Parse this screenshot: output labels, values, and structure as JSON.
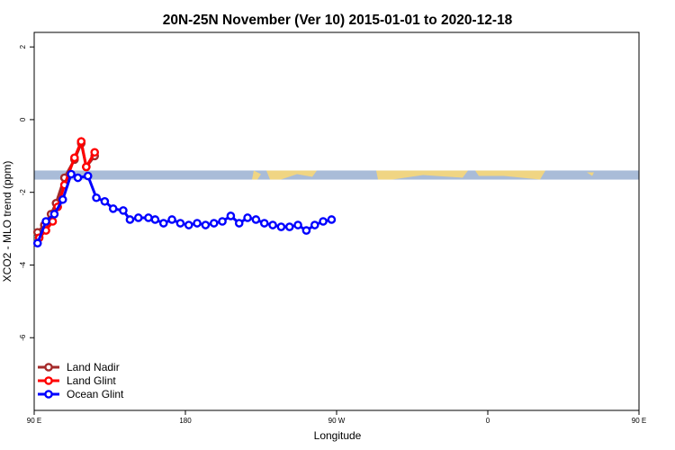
{
  "chart_data": {
    "type": "line",
    "title": "20N-25N November (Ver 10)   2015-01-01 to 2020-12-18",
    "xlabel": "Longitude",
    "ylabel": "XCO2 - MLO trend (ppm)",
    "xlim": [
      90,
      450
    ],
    "ylim": [
      -8,
      2.4
    ],
    "x_ticks": [
      {
        "value": 90,
        "label": "90 E"
      },
      {
        "value": 180,
        "label": "180"
      },
      {
        "value": 270,
        "label": "90 W"
      },
      {
        "value": 360,
        "label": "0"
      },
      {
        "value": 450,
        "label": "90 E"
      },
      {
        "value": 540,
        "label": "180"
      }
    ],
    "y_ticks": [
      {
        "value": 2,
        "label": "2"
      },
      {
        "value": 0,
        "label": "0"
      },
      {
        "value": -2,
        "label": "-2"
      },
      {
        "value": -4,
        "label": "-4"
      },
      {
        "value": -6,
        "label": "-6"
      }
    ],
    "map_strip": {
      "y_top": -1.4,
      "y_bottom": -1.65,
      "ocean_color": "#a9bcd8",
      "land_color": "#f7d77a"
    },
    "legend_position": "bottom-left",
    "series": [
      {
        "name": "Land Nadir",
        "color": "#a52a2a",
        "x": [
          92,
          96,
          100,
          103,
          108,
          114,
          118,
          121,
          126
        ],
        "y": [
          -3.1,
          -2.9,
          -2.6,
          -2.3,
          -1.6,
          -1.1,
          -0.65,
          -1.3,
          -1.0
        ]
      },
      {
        "name": "Land Glint",
        "color": "#ff0000",
        "x": [
          93,
          97,
          101,
          104,
          108,
          114,
          118,
          121,
          126
        ],
        "y": [
          -3.25,
          -3.05,
          -2.8,
          -2.4,
          -1.8,
          -1.05,
          -0.6,
          -1.3,
          -0.9
        ]
      },
      {
        "name": "Ocean Glint",
        "color": "#0000ff",
        "x": [
          92,
          97,
          102,
          107,
          112,
          116,
          122,
          127,
          132,
          137,
          143,
          147,
          152,
          158,
          162,
          167,
          172,
          177,
          182,
          187,
          192,
          197,
          202,
          207,
          212,
          217,
          222,
          227,
          232,
          237,
          242,
          247,
          252,
          257,
          262,
          267
        ],
        "y": [
          -3.4,
          -2.8,
          -2.6,
          -2.2,
          -1.5,
          -1.6,
          -1.55,
          -2.15,
          -2.25,
          -2.45,
          -2.5,
          -2.75,
          -2.7,
          -2.7,
          -2.75,
          -2.85,
          -2.75,
          -2.85,
          -2.9,
          -2.85,
          -2.9,
          -2.85,
          -2.8,
          -2.65,
          -2.85,
          -2.7,
          -2.75,
          -2.85,
          -2.9,
          -2.95,
          -2.95,
          -2.9,
          -3.05,
          -2.9,
          -2.8,
          -2.75
        ]
      }
    ]
  }
}
